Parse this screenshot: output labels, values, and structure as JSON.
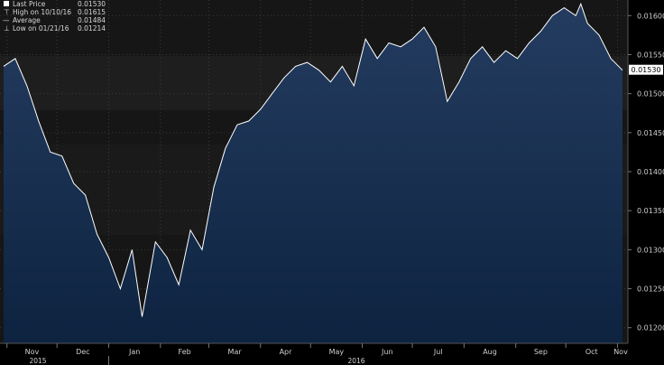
{
  "chart_data": {
    "type": "area",
    "title": "",
    "xlabel": "",
    "ylabel": "",
    "ylim": [
      0.0118,
      0.0162
    ],
    "y_ticks": [
      "0.01600",
      "0.01550",
      "0.01500",
      "0.01450",
      "0.01400",
      "0.01350",
      "0.01300",
      "0.01250",
      "0.01200"
    ],
    "x_ticks": [
      "Nov",
      "Dec",
      "Jan",
      "Feb",
      "Mar",
      "Apr",
      "May",
      "Jun",
      "Jul",
      "Aug",
      "Sep",
      "Oct",
      "Nov"
    ],
    "year_labels": [
      "2015",
      "2016"
    ],
    "grid": true,
    "legend_position": "top-left",
    "legend": [
      {
        "icon": "last-price",
        "label": "Last Price",
        "value": "0.01530"
      },
      {
        "icon": "high-marker",
        "label": "High on 10/10/16",
        "value": "0.01615"
      },
      {
        "icon": "average-marker",
        "label": "Average",
        "value": "0.01484"
      },
      {
        "icon": "low-marker",
        "label": "Low on 01/21/16",
        "value": "0.01214"
      }
    ],
    "last_price_label": "0.01530",
    "series": [
      {
        "name": "Last Price",
        "x": [
          "2015-10-30",
          "2015-11-06",
          "2015-11-13",
          "2015-11-20",
          "2015-11-27",
          "2015-12-04",
          "2015-12-11",
          "2015-12-18",
          "2015-12-25",
          "2016-01-01",
          "2016-01-08",
          "2016-01-15",
          "2016-01-21",
          "2016-01-29",
          "2016-02-05",
          "2016-02-12",
          "2016-02-19",
          "2016-02-26",
          "2016-03-04",
          "2016-03-11",
          "2016-03-18",
          "2016-03-25",
          "2016-04-01",
          "2016-04-08",
          "2016-04-15",
          "2016-04-22",
          "2016-04-29",
          "2016-05-06",
          "2016-05-13",
          "2016-05-20",
          "2016-05-27",
          "2016-06-03",
          "2016-06-10",
          "2016-06-17",
          "2016-06-24",
          "2016-07-01",
          "2016-07-08",
          "2016-07-15",
          "2016-07-22",
          "2016-07-29",
          "2016-08-05",
          "2016-08-12",
          "2016-08-19",
          "2016-08-26",
          "2016-09-02",
          "2016-09-09",
          "2016-09-16",
          "2016-09-23",
          "2016-09-30",
          "2016-10-07",
          "2016-10-10",
          "2016-10-14",
          "2016-10-21",
          "2016-10-28",
          "2016-11-04"
        ],
        "values": [
          0.01535,
          0.01545,
          0.0151,
          0.01465,
          0.01425,
          0.0142,
          0.01385,
          0.0137,
          0.0132,
          0.0129,
          0.0125,
          0.013,
          0.01214,
          0.0131,
          0.0129,
          0.01255,
          0.01325,
          0.013,
          0.0138,
          0.0143,
          0.0146,
          0.01465,
          0.0148,
          0.015,
          0.0152,
          0.01535,
          0.0154,
          0.0153,
          0.01515,
          0.01535,
          0.0151,
          0.0157,
          0.01545,
          0.01565,
          0.0156,
          0.0157,
          0.01585,
          0.0156,
          0.0149,
          0.01515,
          0.01545,
          0.0156,
          0.0154,
          0.01555,
          0.01545,
          0.01565,
          0.0158,
          0.016,
          0.0161,
          0.016,
          0.01615,
          0.0159,
          0.01575,
          0.01545,
          0.0153
        ]
      }
    ]
  }
}
